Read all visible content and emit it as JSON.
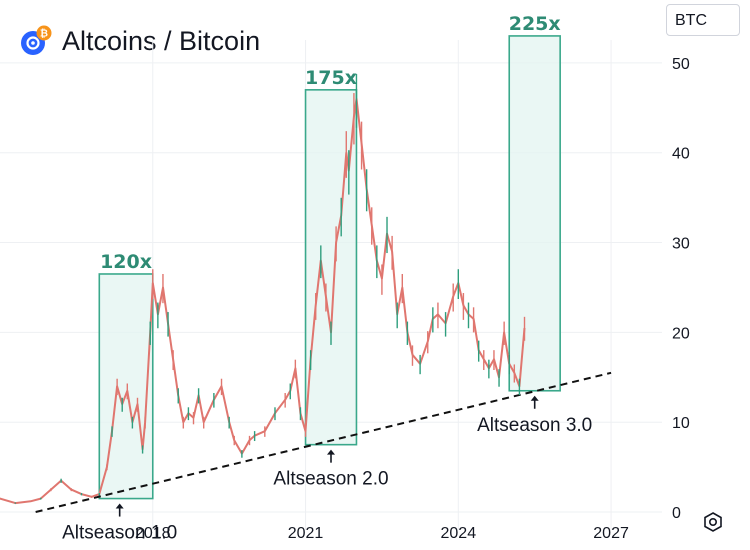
{
  "header": {
    "title": "Altcoins / Bitcoin",
    "currency": "BTC"
  },
  "chart_data": {
    "type": "line",
    "title": "Altcoins / Bitcoin",
    "ylabel": "BTC",
    "xlim": [
      2015,
      2028
    ],
    "ylim": [
      -2,
      57
    ],
    "x_ticks": [
      2018,
      2021,
      2024,
      2027
    ],
    "y_ticks": [
      0,
      10,
      20,
      30,
      40,
      50
    ],
    "grid": true,
    "series": [
      {
        "x": [
          2015.0,
          2015.3,
          2015.6,
          2015.8,
          2016.0,
          2016.2,
          2016.4,
          2016.6,
          2016.8,
          2016.95,
          2017.1,
          2017.2,
          2017.3,
          2017.4,
          2017.5,
          2017.6,
          2017.7,
          2017.8,
          2017.85,
          2017.95,
          2018.0,
          2018.1,
          2018.2,
          2018.3,
          2018.4,
          2018.5,
          2018.6,
          2018.7,
          2018.8,
          2018.9,
          2019.0,
          2019.2,
          2019.35,
          2019.5,
          2019.6,
          2019.75,
          2019.9,
          2020.0,
          2020.2,
          2020.4,
          2020.6,
          2020.7,
          2020.8,
          2020.9,
          2021.0,
          2021.1,
          2021.2,
          2021.3,
          2021.4,
          2021.5,
          2021.6,
          2021.7,
          2021.8,
          2021.85,
          2021.95,
          2022.0,
          2022.1,
          2022.2,
          2022.3,
          2022.4,
          2022.5,
          2022.6,
          2022.7,
          2022.8,
          2022.9,
          2023.0,
          2023.1,
          2023.25,
          2023.4,
          2023.5,
          2023.6,
          2023.75,
          2023.9,
          2024.0,
          2024.1,
          2024.2,
          2024.3,
          2024.4,
          2024.5,
          2024.6,
          2024.7,
          2024.8,
          2024.9,
          2025.0,
          2025.1,
          2025.2,
          2025.3
        ],
        "y": [
          1.5,
          1.0,
          1.2,
          1.5,
          2.5,
          3.5,
          2.5,
          2.0,
          1.7,
          2.0,
          5.0,
          9.0,
          14.0,
          12.0,
          13.5,
          10.0,
          12.0,
          7.0,
          10.0,
          20.0,
          25.5,
          22.0,
          25.0,
          21.0,
          17.0,
          13.0,
          10.0,
          11.0,
          10.5,
          13.0,
          10.0,
          12.5,
          14.0,
          10.0,
          8.0,
          6.5,
          8.0,
          8.5,
          9.0,
          11.0,
          12.5,
          13.5,
          16.0,
          11.0,
          9.0,
          17.0,
          23.0,
          28.0,
          24.0,
          20.0,
          30.0,
          33.0,
          40.0,
          38.0,
          44.0,
          46.0,
          41.0,
          36.0,
          32.0,
          28.0,
          26.0,
          31.0,
          29.0,
          22.0,
          25.0,
          20.0,
          17.5,
          16.5,
          19.0,
          21.5,
          22.0,
          21.0,
          24.0,
          25.5,
          23.0,
          22.0,
          21.5,
          18.0,
          17.0,
          16.0,
          17.0,
          15.0,
          20.0,
          16.5,
          15.5,
          14.0,
          20.5
        ]
      }
    ],
    "trendline": {
      "x": [
        2015.7,
        2027.0
      ],
      "y": [
        0.0,
        15.5
      ]
    },
    "highlight_boxes": [
      {
        "x0": 2016.95,
        "x1": 2018.0,
        "y0": 1.5,
        "y1": 26.5,
        "label": "120x",
        "annotation": "Altseason 1.0",
        "arrow_x": 2017.35
      },
      {
        "x0": 2021.0,
        "x1": 2022.0,
        "y0": 7.5,
        "y1": 47.0,
        "label": "175x",
        "annotation": "Altseason 2.0",
        "arrow_x": 2021.5
      },
      {
        "x0": 2025.0,
        "x1": 2026.0,
        "y0": 13.5,
        "y1": 53.0,
        "label": "225x",
        "annotation": "Altseason 3.0",
        "arrow_x": 2025.5
      }
    ],
    "colors": {
      "price_line": "#e0766f",
      "box_fill": "#e3f4f0",
      "box_stroke": "#3aa88b",
      "box_label": "#2e8b74",
      "trendline": "#111111",
      "grid": "#eef0f3",
      "logo_main": "#2962ff",
      "logo_badge": "#f7931a"
    }
  }
}
